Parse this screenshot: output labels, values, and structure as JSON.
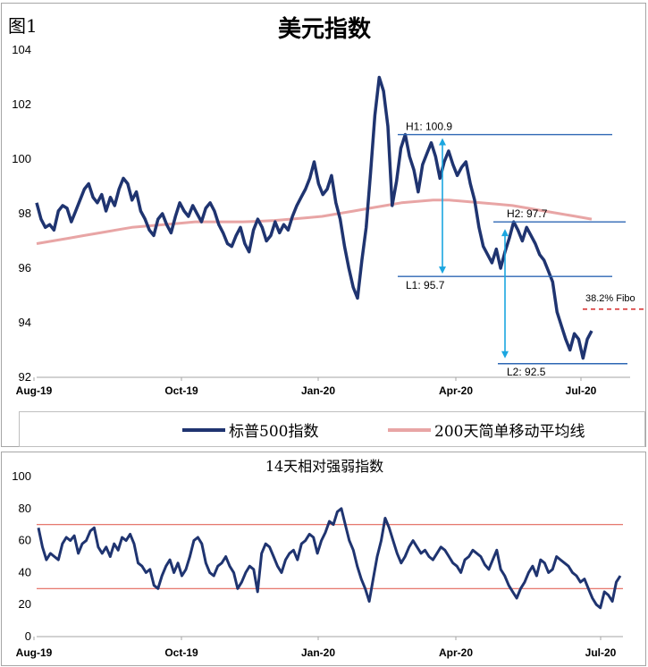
{
  "figure_label": "图1",
  "chart_data": [
    {
      "type": "line",
      "title": "美元指数",
      "ylim": [
        92,
        104
      ],
      "yticks": [
        "92",
        "94",
        "96",
        "98",
        "100",
        "102",
        "104"
      ],
      "xticks": [
        "Aug-19",
        "Oct-19",
        "Jan-20",
        "Apr-20",
        "Jul-20"
      ],
      "series": [
        {
          "name": "标普500指数",
          "color": "#1f3470",
          "values": [
            98.4,
            97.8,
            97.5,
            97.6,
            97.4,
            98.1,
            98.3,
            98.2,
            97.7,
            98.1,
            98.5,
            98.9,
            99.1,
            98.6,
            98.4,
            98.7,
            98.1,
            98.6,
            98.3,
            98.9,
            99.3,
            99.1,
            98.5,
            98.8,
            98.1,
            97.8,
            97.4,
            97.2,
            97.8,
            98.0,
            97.6,
            97.3,
            97.9,
            98.4,
            98.1,
            97.9,
            98.3,
            98.0,
            97.7,
            98.2,
            98.4,
            98.1,
            97.6,
            97.3,
            96.9,
            96.8,
            97.2,
            97.5,
            96.9,
            96.6,
            97.4,
            97.8,
            97.5,
            97.0,
            97.2,
            97.7,
            97.3,
            97.6,
            97.4,
            97.9,
            98.3,
            98.6,
            98.9,
            99.3,
            99.9,
            99.1,
            98.7,
            98.9,
            99.4,
            98.4,
            97.8,
            96.8,
            96.0,
            95.3,
            94.9,
            96.3,
            97.5,
            99.5,
            101.6,
            103.0,
            102.5,
            101.2,
            98.3,
            99.2,
            100.4,
            100.9,
            100.1,
            99.6,
            98.8,
            99.8,
            100.2,
            100.6,
            100.1,
            99.3,
            99.9,
            100.3,
            99.8,
            99.4,
            99.7,
            99.9,
            99.1,
            98.5,
            97.5,
            96.8,
            96.5,
            96.2,
            96.7,
            96.0,
            96.6,
            97.1,
            97.7,
            97.4,
            97.0,
            97.5,
            97.2,
            96.9,
            96.5,
            96.3,
            95.9,
            95.5,
            94.4,
            93.9,
            93.4,
            93.0,
            93.6,
            93.4,
            92.7,
            93.4,
            93.7
          ]
        },
        {
          "name": "200天简单移动平均线",
          "color": "#e8a5a5",
          "values": [
            96.9,
            97.0,
            97.1,
            97.2,
            97.3,
            97.4,
            97.5,
            97.55,
            97.6,
            97.65,
            97.7,
            97.7,
            97.7,
            97.7,
            97.72,
            97.75,
            97.8,
            97.85,
            97.9,
            98.0,
            98.1,
            98.2,
            98.3,
            98.4,
            98.45,
            98.5,
            98.5,
            98.45,
            98.4,
            98.35,
            98.3,
            98.2,
            98.1,
            98.0,
            97.9,
            97.8
          ]
        }
      ],
      "annotations": [
        {
          "label": "H1: 100.9",
          "value": 100.9
        },
        {
          "label": "L1: 95.7",
          "value": 95.7
        },
        {
          "label": "H2: 97.7",
          "value": 97.7
        },
        {
          "label": "L2: 92.5",
          "value": 92.5
        },
        {
          "label": "38.2% Fibo",
          "value": 94.5
        }
      ]
    },
    {
      "type": "line",
      "title": "14天相对强弱指数",
      "ylim": [
        0,
        100
      ],
      "yticks": [
        "0",
        "20",
        "40",
        "60",
        "80",
        "100"
      ],
      "xticks": [
        "Aug-19",
        "Oct-19",
        "Jan-20",
        "Apr-20",
        "Jul-20"
      ],
      "reference_lines": [
        70,
        30
      ],
      "series": [
        {
          "name": "",
          "color": "#1f3470",
          "values": [
            68,
            56,
            48,
            52,
            50,
            48,
            58,
            62,
            60,
            63,
            52,
            58,
            60,
            66,
            68,
            56,
            52,
            56,
            50,
            58,
            54,
            62,
            60,
            64,
            58,
            46,
            44,
            40,
            42,
            32,
            30,
            38,
            44,
            48,
            40,
            46,
            38,
            42,
            50,
            60,
            62,
            58,
            46,
            40,
            38,
            44,
            46,
            50,
            44,
            40,
            30,
            34,
            40,
            44,
            42,
            28,
            52,
            58,
            56,
            50,
            44,
            40,
            48,
            52,
            54,
            48,
            58,
            60,
            64,
            62,
            52,
            60,
            65,
            72,
            70,
            78,
            80,
            70,
            60,
            54,
            44,
            36,
            30,
            22,
            36,
            50,
            60,
            74,
            68,
            60,
            52,
            46,
            50,
            56,
            60,
            56,
            52,
            54,
            50,
            48,
            52,
            56,
            54,
            50,
            46,
            44,
            40,
            48,
            50,
            54,
            52,
            50,
            45,
            42,
            48,
            54,
            42,
            38,
            32,
            28,
            24,
            30,
            34,
            40,
            44,
            38,
            48,
            46,
            40,
            42,
            50,
            48,
            46,
            44,
            40,
            38,
            34,
            36,
            30,
            24,
            20,
            18,
            28,
            26,
            22,
            34,
            38
          ]
        }
      ]
    }
  ],
  "colors": {
    "ref_line": "#e3665a",
    "annotation_line": "#2e67b4",
    "arrow": "#1ba6e0",
    "fibo": "#d62a2a",
    "axis": "#a6a6a6"
  }
}
